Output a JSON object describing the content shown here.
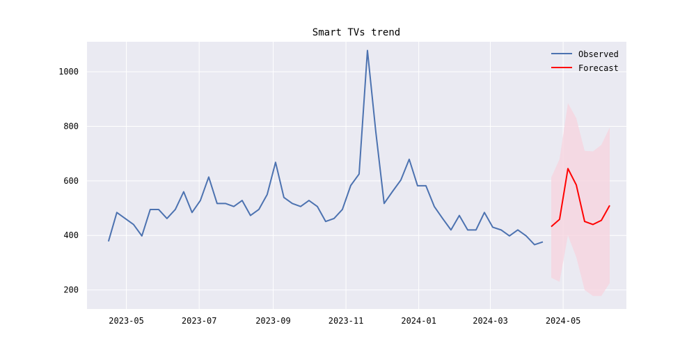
{
  "chart_data": {
    "type": "line",
    "title": "Smart TVs trend",
    "xlabel": "",
    "ylabel": "",
    "x_type": "date",
    "xlim": [
      "2023-03-29",
      "2024-06-23"
    ],
    "ylim": [
      130,
      1110
    ],
    "x_ticks": [
      "2023-05-01",
      "2023-07-01",
      "2023-09-01",
      "2023-11-01",
      "2024-01-01",
      "2024-03-01",
      "2024-05-01"
    ],
    "x_tick_labels": [
      "2023-05",
      "2023-07",
      "2023-09",
      "2023-11",
      "2024-01",
      "2024-03",
      "2024-05"
    ],
    "y_ticks": [
      200,
      400,
      600,
      800,
      1000
    ],
    "y_tick_labels": [
      "200",
      "400",
      "600",
      "800",
      "1000"
    ],
    "grid": true,
    "background": "#eaeaf2",
    "legend_position": "top-right",
    "series": [
      {
        "name": "Observed",
        "color": "#4c72b0",
        "x": [
          "2023-04-16",
          "2023-04-23",
          "2023-04-30",
          "2023-05-07",
          "2023-05-14",
          "2023-05-21",
          "2023-05-28",
          "2023-06-04",
          "2023-06-11",
          "2023-06-18",
          "2023-06-25",
          "2023-07-02",
          "2023-07-09",
          "2023-07-16",
          "2023-07-23",
          "2023-07-30",
          "2023-08-06",
          "2023-08-13",
          "2023-08-20",
          "2023-08-27",
          "2023-09-03",
          "2023-09-10",
          "2023-09-17",
          "2023-09-24",
          "2023-10-01",
          "2023-10-08",
          "2023-10-15",
          "2023-10-22",
          "2023-10-29",
          "2023-11-05",
          "2023-11-12",
          "2023-11-19",
          "2023-11-26",
          "2023-12-03",
          "2023-12-10",
          "2023-12-17",
          "2023-12-24",
          "2023-12-31",
          "2024-01-07",
          "2024-01-14",
          "2024-01-21",
          "2024-01-28",
          "2024-02-04",
          "2024-02-11",
          "2024-02-18",
          "2024-02-25",
          "2024-03-03",
          "2024-03-10",
          "2024-03-17",
          "2024-03-24",
          "2024-03-31",
          "2024-04-07",
          "2024-04-14"
        ],
        "values": [
          378,
          484,
          462,
          440,
          398,
          495,
          495,
          462,
          495,
          560,
          484,
          528,
          614,
          517,
          517,
          506,
          528,
          473,
          495,
          550,
          668,
          539,
          517,
          506,
          528,
          506,
          451,
          462,
          495,
          583,
          625,
          1078,
          780,
          517,
          561,
          603,
          679,
          582,
          582,
          506,
          462,
          420,
          473,
          420,
          420,
          484,
          430,
          420,
          398,
          420,
          398,
          366,
          376
        ]
      },
      {
        "name": "Forecast",
        "color": "#ff0000",
        "x": [
          "2024-04-21",
          "2024-04-28",
          "2024-05-05",
          "2024-05-12",
          "2024-05-19",
          "2024-05-26",
          "2024-06-02",
          "2024-06-09"
        ],
        "values": [
          432,
          459,
          645,
          585,
          451,
          440,
          455,
          510
        ],
        "lower": [
          245,
          230,
          400,
          320,
          200,
          178,
          178,
          225
        ],
        "upper": [
          612,
          680,
          885,
          830,
          710,
          708,
          732,
          795
        ],
        "band_color": "#f7d3de"
      }
    ]
  }
}
